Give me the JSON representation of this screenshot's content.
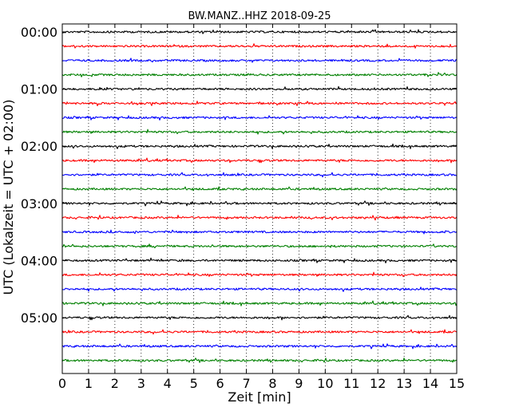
{
  "chart_data": {
    "type": "line",
    "title": "BW.MANZ..HHZ 2018-09-25",
    "xlabel": "Zeit  [min]",
    "ylabel": "UTC (Lokalzeit = UTC + 02:00)",
    "xlim": [
      0,
      15
    ],
    "xticks": [
      0,
      1,
      2,
      3,
      4,
      5,
      6,
      7,
      8,
      9,
      10,
      11,
      12,
      13,
      14,
      15
    ],
    "ytick_labels": [
      "00:00",
      "01:00",
      "02:00",
      "03:00",
      "04:00",
      "05:00"
    ],
    "grid": "vertical dotted at each minute",
    "trace_interval_minutes": 15,
    "trace_colors": [
      "#000000",
      "#ff0000",
      "#0000ff",
      "#008000"
    ],
    "traces": [
      {
        "start": "00:00",
        "color": "#000000"
      },
      {
        "start": "00:15",
        "color": "#ff0000"
      },
      {
        "start": "00:30",
        "color": "#0000ff"
      },
      {
        "start": "00:45",
        "color": "#008000"
      },
      {
        "start": "01:00",
        "color": "#000000"
      },
      {
        "start": "01:15",
        "color": "#ff0000"
      },
      {
        "start": "01:30",
        "color": "#0000ff"
      },
      {
        "start": "01:45",
        "color": "#008000"
      },
      {
        "start": "02:00",
        "color": "#000000"
      },
      {
        "start": "02:15",
        "color": "#ff0000"
      },
      {
        "start": "02:30",
        "color": "#0000ff"
      },
      {
        "start": "02:45",
        "color": "#008000"
      },
      {
        "start": "03:00",
        "color": "#000000"
      },
      {
        "start": "03:15",
        "color": "#ff0000"
      },
      {
        "start": "03:30",
        "color": "#0000ff"
      },
      {
        "start": "03:45",
        "color": "#008000"
      },
      {
        "start": "04:00",
        "color": "#000000"
      },
      {
        "start": "04:15",
        "color": "#ff0000"
      },
      {
        "start": "04:30",
        "color": "#0000ff"
      },
      {
        "start": "04:45",
        "color": "#008000"
      },
      {
        "start": "05:00",
        "color": "#000000"
      },
      {
        "start": "05:15",
        "color": "#ff0000"
      },
      {
        "start": "05:30",
        "color": "#0000ff"
      },
      {
        "start": "05:45",
        "color": "#008000"
      }
    ]
  }
}
